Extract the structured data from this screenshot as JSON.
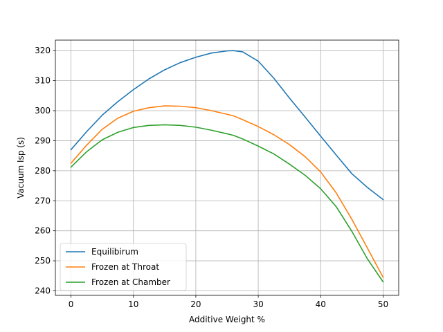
{
  "chart_data": {
    "type": "line",
    "title": "",
    "xlabel": "Additive Weight %",
    "ylabel": "Vacuum Isp (s)",
    "xlim": [
      -2.5,
      52.5
    ],
    "ylim": [
      238.5,
      323.5
    ],
    "xticks": [
      0,
      10,
      20,
      30,
      40,
      50
    ],
    "yticks": [
      240,
      250,
      260,
      270,
      280,
      290,
      300,
      310,
      320
    ],
    "grid": true,
    "legend_position": "lower left",
    "x": [
      0,
      2.5,
      5,
      7.5,
      10,
      12.5,
      15,
      17.5,
      20,
      22.5,
      25,
      26,
      27.5,
      30,
      32.5,
      35,
      37.5,
      40,
      42.5,
      45,
      47.5,
      50
    ],
    "series": [
      {
        "name": "Equilibirum",
        "color": "#1f77b4",
        "values": [
          287.0,
          293.0,
          298.5,
          303.0,
          307.0,
          310.6,
          313.6,
          316.0,
          317.8,
          319.2,
          319.9,
          320.0,
          319.6,
          316.5,
          310.8,
          304.2,
          297.9,
          291.5,
          285.2,
          279.0,
          274.4,
          270.4
        ]
      },
      {
        "name": "Frozen at Throat",
        "color": "#ff7f0e",
        "values": [
          282.5,
          288.5,
          293.8,
          297.5,
          299.8,
          301.0,
          301.6,
          301.5,
          301.0,
          300.0,
          298.8,
          298.3,
          297.0,
          294.7,
          292.0,
          288.7,
          284.7,
          279.6,
          272.6,
          263.8,
          254.2,
          244.5
        ]
      },
      {
        "name": "Frozen at Chamber",
        "color": "#2ca02c",
        "values": [
          281.2,
          286.3,
          290.3,
          292.8,
          294.4,
          295.1,
          295.3,
          295.1,
          294.5,
          293.5,
          292.3,
          291.8,
          290.6,
          288.2,
          285.6,
          282.2,
          278.5,
          274.0,
          268.0,
          259.8,
          250.6,
          243.0
        ]
      }
    ]
  }
}
